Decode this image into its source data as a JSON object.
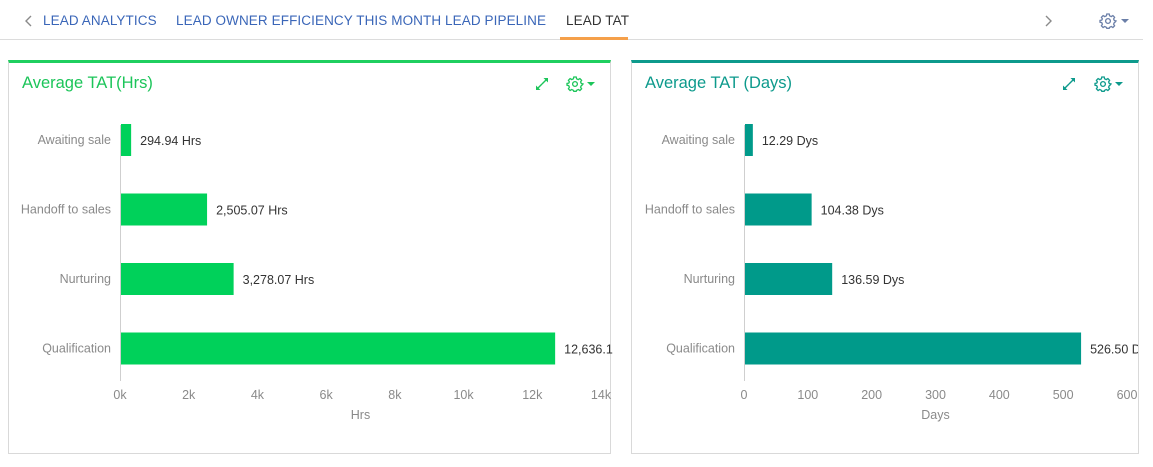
{
  "tabs": {
    "items": [
      {
        "label": "LEAD ANALYTICS",
        "active": false
      },
      {
        "label": "LEAD OWNER EFFICIENCY THIS MONTH",
        "active": false
      },
      {
        "label": "LEAD PIPELINE",
        "active": false
      },
      {
        "label": "LEAD TAT",
        "active": true
      }
    ],
    "prev_icon": "chevron-left-icon",
    "next_icon": "chevron-right-icon",
    "settings_icon": "gear-icon"
  },
  "colors": {
    "hrs_accent": "#1fcf5f",
    "days_accent": "#0d9a8c",
    "tab_link": "#3a66b8",
    "tab_active_underline": "#f5a04a"
  },
  "panels": {
    "hrs": {
      "title": "Average TAT(Hrs)"
    },
    "days": {
      "title": "Average TAT (Days)"
    }
  },
  "chart_data": [
    {
      "type": "bar",
      "orientation": "horizontal",
      "title": "Average TAT(Hrs)",
      "categories": [
        "Awaiting sale",
        "Handoff to sales",
        "Nurturing",
        "Qualification"
      ],
      "values": [
        294.94,
        2505.07,
        3278.07,
        12636.1
      ],
      "value_labels": [
        "294.94 Hrs",
        "2,505.07 Hrs",
        "3,278.07 Hrs",
        "12,636.1"
      ],
      "xlabel": "Hrs",
      "xlim": [
        0,
        14000
      ],
      "xticks": [
        0,
        2000,
        4000,
        6000,
        8000,
        10000,
        12000,
        14000
      ],
      "xtick_labels": [
        "0k",
        "2k",
        "4k",
        "6k",
        "8k",
        "10k",
        "12k",
        "14k"
      ],
      "color": "#00d15a",
      "grid": false
    },
    {
      "type": "bar",
      "orientation": "horizontal",
      "title": "Average TAT (Days)",
      "categories": [
        "Awaiting sale",
        "Handoff to sales",
        "Nurturing",
        "Qualification"
      ],
      "values": [
        12.29,
        104.38,
        136.59,
        526.5
      ],
      "value_labels": [
        "12.29 Dys",
        "104.38 Dys",
        "136.59 Dys",
        "526.50 D"
      ],
      "xlabel": "Days",
      "xlim": [
        0,
        600
      ],
      "xticks": [
        0,
        100,
        200,
        300,
        400,
        500,
        600
      ],
      "xtick_labels": [
        "0",
        "100",
        "200",
        "300",
        "400",
        "500",
        "600"
      ],
      "color": "#009a8a",
      "grid": false
    }
  ]
}
